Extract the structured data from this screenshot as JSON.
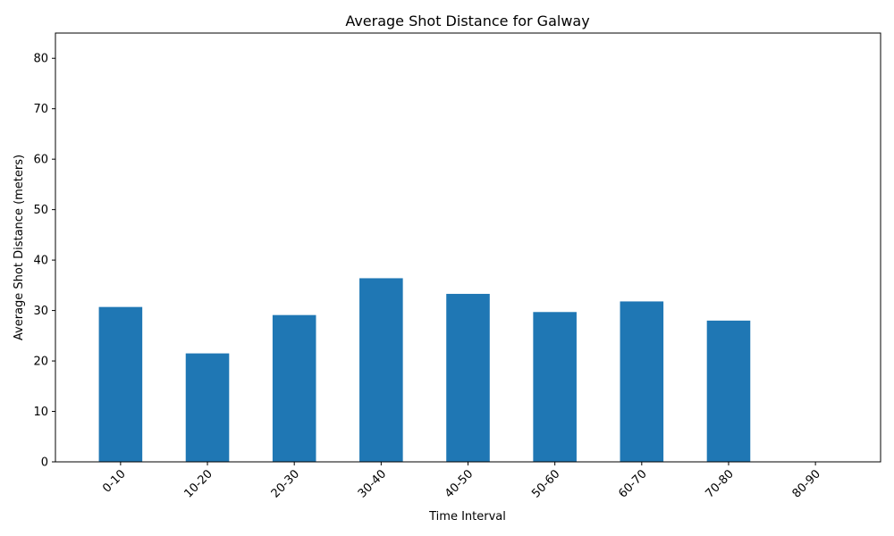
{
  "chart_data": {
    "type": "bar",
    "title": "Average Shot Distance for Galway",
    "xlabel": "Time Interval",
    "ylabel": "Average Shot Distance (meters)",
    "categories": [
      "0-10",
      "10-20",
      "20-30",
      "30-40",
      "40-50",
      "50-60",
      "60-70",
      "70-80",
      "80-90"
    ],
    "values": [
      30.7,
      21.5,
      29.1,
      36.4,
      33.3,
      29.7,
      31.8,
      28.0,
      0
    ],
    "ylim": [
      0,
      85
    ],
    "yticks": [
      0,
      10,
      20,
      30,
      40,
      50,
      60,
      70,
      80
    ],
    "grid": false,
    "legend": "none",
    "bar_color": "#1f77b4"
  }
}
